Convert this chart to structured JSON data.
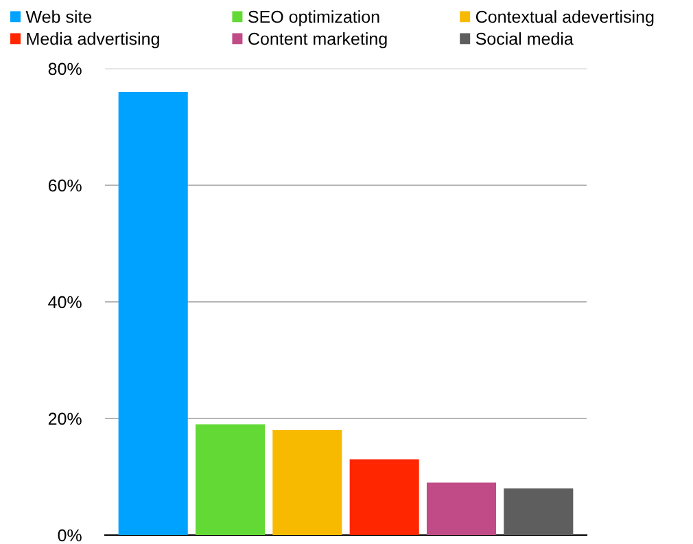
{
  "chart_data": {
    "type": "bar",
    "categories": [
      null
    ],
    "series": [
      {
        "name": "Web site",
        "color": "#00a2ff",
        "values": [
          76
        ]
      },
      {
        "name": "SEO optimization",
        "color": "#63d936",
        "values": [
          19
        ]
      },
      {
        "name": "Contextual adevertising",
        "color": "#f8ba00",
        "values": [
          18
        ]
      },
      {
        "name": "Media advertising",
        "color": "#ff2600",
        "values": [
          13
        ]
      },
      {
        "name": "Content marketing",
        "color": "#c04b86",
        "values": [
          9
        ]
      },
      {
        "name": "Social media",
        "color": "#5e5e5e",
        "values": [
          8
        ]
      }
    ],
    "ylim": [
      0,
      80
    ],
    "yticks": [
      {
        "value": 0,
        "label": "0%"
      },
      {
        "value": 20,
        "label": "20%"
      },
      {
        "value": 40,
        "label": "40%"
      },
      {
        "value": 60,
        "label": "60%"
      },
      {
        "value": 80,
        "label": "80%"
      }
    ],
    "grid": "y",
    "legend": "top"
  }
}
